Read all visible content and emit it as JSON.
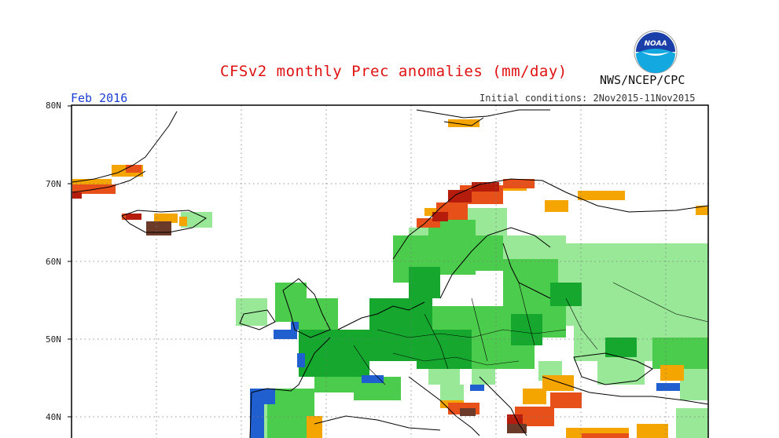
{
  "title": "CFSv2 monthly Prec anomalies (mm/day)",
  "org": "NWS/NCEP/CPC",
  "logo_text": "NOAA",
  "valid_month": "Feb 2016",
  "initial_conditions": "Initial conditions: 2Nov2015-11Nov2015",
  "lat_labels": [
    "80N",
    "70N",
    "60N",
    "50N",
    "40N"
  ],
  "colors": {
    "light_green": "#98e898",
    "green": "#4ccc4c",
    "dark_green": "#16a82e",
    "blue": "#1f5fd0",
    "orange": "#f5a500",
    "red_orange": "#e8501a",
    "dark_red": "#b51c0c",
    "brown": "#6b3a28"
  }
}
